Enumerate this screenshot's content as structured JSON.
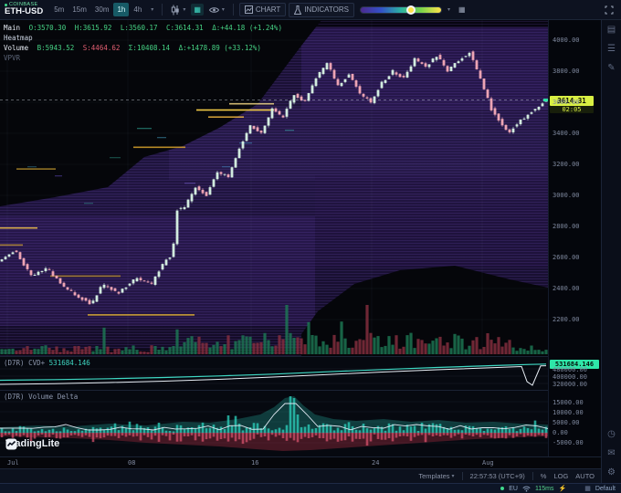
{
  "toolbar": {
    "exchange": "COINBASE",
    "symbol": "ETH-USD",
    "timeframes": [
      "5m",
      "15m",
      "30m",
      "1h",
      "4h"
    ],
    "active_timeframe": "1h",
    "chart_label": "CHART",
    "indicators_label": "INDICATORS"
  },
  "legend": {
    "main_label": "Main",
    "main_values": {
      "o": "O:3570.30",
      "h": "H:3615.92",
      "l": "L:3560.17",
      "c": "C:3614.31",
      "delta": "Δ:+44.18 (+1.24%)"
    },
    "heatmap_label": "Heatmap",
    "volume_label": "Volume",
    "volume_values": {
      "b": "B:5943.52",
      "s": "S:4464.62",
      "sum": "Σ:10408.14",
      "delta": "Δ:+1478.89 (+33.12%)"
    },
    "vpvr_label": "VPVR"
  },
  "price_axis": {
    "labels": [
      "4000.00",
      "3800.00",
      "3600.00",
      "3400.00",
      "3200.00",
      "3000.00",
      "2800.00",
      "2600.00",
      "2400.00",
      "2200.00"
    ],
    "last_price": "3614.31",
    "last_price_value": 3614.31,
    "countdown": "02:05"
  },
  "cvd_panel": {
    "title": "(D7R) CVD+",
    "value": "531684.146",
    "badge": "531684.146",
    "axis_labels": [
      "480000.00",
      "400000.00",
      "320000.00"
    ]
  },
  "delta_panel": {
    "title": "(D7R) Volume Delta",
    "axis_labels": [
      "15000.00",
      "10000.00",
      "5000.00",
      "0.00",
      "-5000.00"
    ]
  },
  "time_axis": {
    "labels": [
      "Jul",
      "08",
      "16",
      "24",
      "Aug"
    ]
  },
  "footer": {
    "templates_label": "Templates",
    "clock": "22:57:53 (UTC+9)",
    "percent_label": "%",
    "log_label": "LOG",
    "auto_label": "AUTO"
  },
  "status_bar": {
    "region": "EU",
    "latency": "115ms",
    "layout_name": "Default"
  },
  "watermark": "TradingLite",
  "colors": {
    "accent": "#2dd4bf",
    "candle_up": "#d2ecdf",
    "candle_down": "#eda4b4",
    "volume_up": "#1d7a55",
    "volume_down": "#8a3040",
    "price_badge": "#d9ef43",
    "cvd_badge": "#2ee6a8"
  },
  "icons": {
    "toolbar": [
      "candlestick-icon",
      "heatmap-icon",
      "eye-icon",
      "chart-icon",
      "flask-icon",
      "gradient-slider",
      "grid-icon",
      "fullscreen-icon"
    ],
    "sidebar": [
      "layout-icon",
      "watchlist-icon",
      "pencil-icon",
      "clock-icon",
      "mail-icon",
      "gear-icon"
    ],
    "status": [
      "wifi-icon",
      "lightning-icon",
      "layout-grid-icon"
    ]
  },
  "chart_data": {
    "type": "candlestick",
    "exchange": "COINBASE",
    "symbol": "ETH-USD",
    "interval": "1h",
    "overlays": [
      "Heatmap",
      "VPVR",
      "CVD+",
      "Volume Delta"
    ],
    "y_axis_range": [
      2150,
      4050
    ],
    "visible_time_labels": [
      "Jul",
      "08",
      "16",
      "24",
      "Aug"
    ],
    "last_ohlc": {
      "open": 3570.3,
      "high": 3615.92,
      "low": 3560.17,
      "close": 3614.31,
      "change": 44.18,
      "change_pct": 1.24
    },
    "last_volume": {
      "buy": 5943.52,
      "sell": 4464.62,
      "total": 10408.14,
      "delta": 1478.89,
      "delta_pct": 33.12
    },
    "cvd_last": 531684.146,
    "cvd_axis_range": [
      280000,
      545000
    ],
    "delta_axis_range": [
      -8000,
      17000
    ],
    "price_anchors": [
      [
        0,
        2570
      ],
      [
        0.03,
        2645
      ],
      [
        0.06,
        2480
      ],
      [
        0.09,
        2530
      ],
      [
        0.12,
        2405
      ],
      [
        0.15,
        2340
      ],
      [
        0.17,
        2300
      ],
      [
        0.19,
        2425
      ],
      [
        0.22,
        2370
      ],
      [
        0.25,
        2465
      ],
      [
        0.28,
        2430
      ],
      [
        0.305,
        2590
      ],
      [
        0.318,
        2600
      ],
      [
        0.325,
        2905
      ],
      [
        0.34,
        2925
      ],
      [
        0.36,
        3055
      ],
      [
        0.38,
        3000
      ],
      [
        0.4,
        3150
      ],
      [
        0.42,
        3120
      ],
      [
        0.44,
        3305
      ],
      [
        0.46,
        3450
      ],
      [
        0.48,
        3400
      ],
      [
        0.5,
        3555
      ],
      [
        0.52,
        3505
      ],
      [
        0.54,
        3650
      ],
      [
        0.56,
        3605
      ],
      [
        0.58,
        3755
      ],
      [
        0.6,
        3850
      ],
      [
        0.62,
        3705
      ],
      [
        0.64,
        3780
      ],
      [
        0.66,
        3655
      ],
      [
        0.68,
        3600
      ],
      [
        0.7,
        3725
      ],
      [
        0.72,
        3800
      ],
      [
        0.74,
        3755
      ],
      [
        0.76,
        3880
      ],
      [
        0.78,
        3825
      ],
      [
        0.8,
        3900
      ],
      [
        0.82,
        3805
      ],
      [
        0.84,
        3870
      ],
      [
        0.86,
        3920
      ],
      [
        0.88,
        3755
      ],
      [
        0.9,
        3555
      ],
      [
        0.92,
        3455
      ],
      [
        0.93,
        3400
      ],
      [
        0.95,
        3475
      ],
      [
        0.97,
        3530
      ],
      [
        1,
        3614
      ]
    ],
    "liquidity_levels": [
      {
        "price": 3550,
        "x0": 0.358,
        "x1": 0.5,
        "color": "#ffd54a",
        "opacity": 0.95
      },
      {
        "price": 3505,
        "x0": 0.38,
        "x1": 0.445,
        "color": "#f0b63f",
        "opacity": 0.85
      },
      {
        "price": 3590,
        "x0": 0.418,
        "x1": 0.5,
        "color": "#ffe48a",
        "opacity": 0.8
      },
      {
        "price": 3310,
        "x0": 0.243,
        "x1": 0.338,
        "color": "#d8a32c",
        "opacity": 0.85
      },
      {
        "price": 3170,
        "x0": 0.03,
        "x1": 0.102,
        "color": "#bd962d",
        "opacity": 0.75
      },
      {
        "price": 2790,
        "x0": 0,
        "x1": 0.068,
        "color": "#f2c24a",
        "opacity": 0.85
      },
      {
        "price": 2680,
        "x0": 0,
        "x1": 0.042,
        "color": "#cc9f33",
        "opacity": 0.75
      },
      {
        "price": 2480,
        "x0": 0.092,
        "x1": 0.22,
        "color": "#b9902a",
        "opacity": 0.8
      },
      {
        "price": 2230,
        "x0": 0.16,
        "x1": 0.355,
        "color": "#d7a832",
        "opacity": 0.9
      }
    ],
    "cvd_series_main": [
      [
        0,
        355000
      ],
      [
        0.1,
        362000
      ],
      [
        0.2,
        372000
      ],
      [
        0.3,
        385000
      ],
      [
        0.4,
        402000
      ],
      [
        0.5,
        422000
      ],
      [
        0.6,
        448000
      ],
      [
        0.7,
        472000
      ],
      [
        0.8,
        495000
      ],
      [
        0.9,
        515000
      ],
      [
        0.97,
        528000
      ],
      [
        1,
        531684
      ]
    ],
    "cvd_series_secondary": [
      [
        0,
        310000
      ],
      [
        0.1,
        318000
      ],
      [
        0.2,
        330000
      ],
      [
        0.3,
        345000
      ],
      [
        0.4,
        365000
      ],
      [
        0.5,
        390000
      ],
      [
        0.6,
        418000
      ],
      [
        0.7,
        445000
      ],
      [
        0.8,
        470000
      ],
      [
        0.9,
        492000
      ],
      [
        0.955,
        505000
      ],
      [
        0.965,
        340000
      ],
      [
        0.975,
        300000
      ],
      [
        0.99,
        512000
      ],
      [
        1,
        514000
      ]
    ]
  }
}
